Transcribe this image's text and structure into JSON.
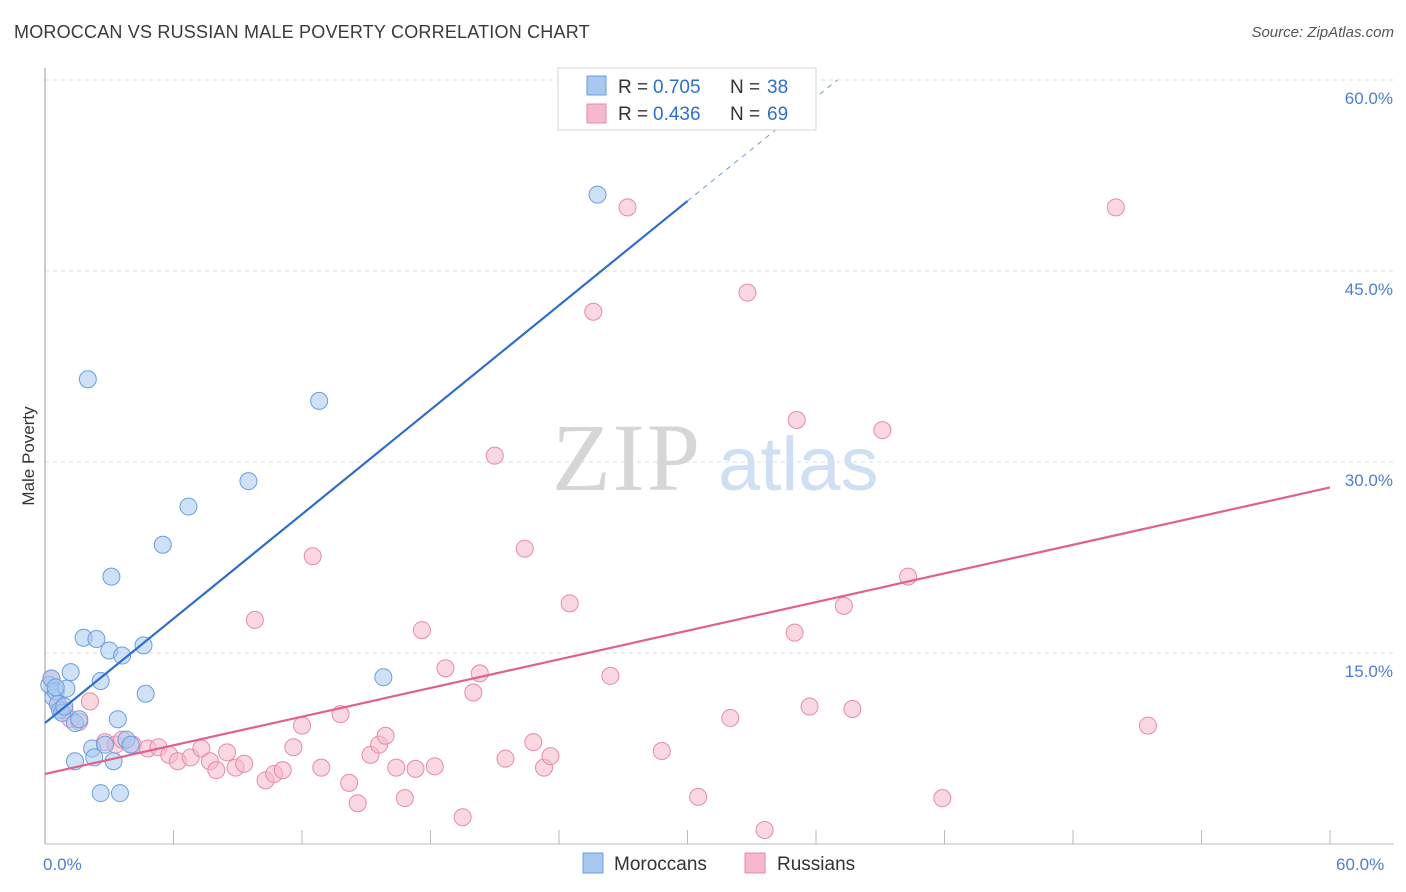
{
  "title": "MOROCCAN VS RUSSIAN MALE POVERTY CORRELATION CHART",
  "source": "Source: ZipAtlas.com",
  "colors": {
    "moroccans": "#a8c8f0",
    "moroccans_stroke": "#6a9ee0",
    "moroccans_line": "#2f6fcc",
    "russians": "#f6b8cb",
    "russians_stroke": "#e98aa8",
    "russians_line": "#e0608e",
    "tick": "#4a7fd4",
    "grid": "#dddddd"
  },
  "watermark": {
    "zip": "ZIP",
    "atlas": "atlas"
  },
  "legend_top": {
    "rows": [
      {
        "r_label": "R = ",
        "r_value": "0.705",
        "n_label": "N = ",
        "n_value": "38"
      },
      {
        "r_label": "R = ",
        "r_value": "0.436",
        "n_label": "N = ",
        "n_value": "69"
      }
    ]
  },
  "legend_bottom": [
    "Moroccans",
    "Russians"
  ],
  "chart_data": {
    "type": "scatter",
    "title": "MOROCCAN VS RUSSIAN MALE POVERTY CORRELATION CHART",
    "xlabel": "",
    "ylabel": "Male Poverty",
    "xlim": [
      0,
      60
    ],
    "ylim": [
      0,
      60
    ],
    "x_tick_labels": [
      "0.0%",
      "60.0%"
    ],
    "y_tick_labels": [
      "15.0%",
      "30.0%",
      "45.0%",
      "60.0%"
    ],
    "y_ticks": [
      15,
      30,
      45,
      60
    ],
    "grid": true,
    "legend": "top-center",
    "series": [
      {
        "name": "Moroccans",
        "r": 0.705,
        "n": 38,
        "trend": {
          "x": [
            0,
            30
          ],
          "y": [
            9.5,
            50.5
          ],
          "extended_to": [
            37,
            60
          ]
        },
        "points": [
          [
            0.2,
            12.5
          ],
          [
            0.3,
            13.0
          ],
          [
            0.4,
            11.5
          ],
          [
            0.5,
            12.0
          ],
          [
            0.6,
            11.0
          ],
          [
            0.7,
            10.5
          ],
          [
            0.8,
            10.3
          ],
          [
            0.9,
            10.8
          ],
          [
            1.0,
            12.2
          ],
          [
            1.2,
            13.5
          ],
          [
            1.4,
            9.5
          ],
          [
            1.6,
            9.8
          ],
          [
            1.8,
            16.2
          ],
          [
            2.0,
            36.5
          ],
          [
            2.2,
            7.5
          ],
          [
            2.4,
            16.1
          ],
          [
            2.6,
            12.8
          ],
          [
            2.8,
            7.8
          ],
          [
            3.0,
            15.2
          ],
          [
            3.1,
            21.0
          ],
          [
            3.2,
            6.5
          ],
          [
            3.4,
            9.8
          ],
          [
            3.6,
            14.8
          ],
          [
            3.8,
            8.2
          ],
          [
            4.0,
            7.8
          ],
          [
            4.6,
            15.6
          ],
          [
            4.7,
            11.8
          ],
          [
            5.5,
            23.5
          ],
          [
            6.7,
            26.5
          ],
          [
            9.5,
            28.5
          ],
          [
            12.8,
            34.8
          ],
          [
            15.8,
            13.1
          ],
          [
            25.8,
            51.0
          ],
          [
            1.4,
            6.5
          ],
          [
            2.3,
            6.8
          ],
          [
            3.5,
            4.0
          ],
          [
            2.6,
            4.0
          ],
          [
            0.5,
            12.3
          ]
        ]
      },
      {
        "name": "Russians",
        "r": 0.436,
        "n": 69,
        "trend": {
          "x": [
            0,
            60
          ],
          "y": [
            5.5,
            28.0
          ]
        },
        "points": [
          [
            0.3,
            13.0
          ],
          [
            0.6,
            11.0
          ],
          [
            0.9,
            10.5
          ],
          [
            1.2,
            9.8
          ],
          [
            1.6,
            9.6
          ],
          [
            2.1,
            11.2
          ],
          [
            2.8,
            8.0
          ],
          [
            3.3,
            7.8
          ],
          [
            3.6,
            8.2
          ],
          [
            4.1,
            7.8
          ],
          [
            4.8,
            7.5
          ],
          [
            5.3,
            7.6
          ],
          [
            5.8,
            7.0
          ],
          [
            6.2,
            6.5
          ],
          [
            6.8,
            6.8
          ],
          [
            7.3,
            7.5
          ],
          [
            7.7,
            6.5
          ],
          [
            8.0,
            5.8
          ],
          [
            8.5,
            7.2
          ],
          [
            8.9,
            6.0
          ],
          [
            9.3,
            6.3
          ],
          [
            9.8,
            17.6
          ],
          [
            10.3,
            5.0
          ],
          [
            10.7,
            5.5
          ],
          [
            11.1,
            5.8
          ],
          [
            11.6,
            7.6
          ],
          [
            12.0,
            9.3
          ],
          [
            12.5,
            22.6
          ],
          [
            12.9,
            6.0
          ],
          [
            13.8,
            10.2
          ],
          [
            14.2,
            4.8
          ],
          [
            14.6,
            3.2
          ],
          [
            15.2,
            7.0
          ],
          [
            15.6,
            7.8
          ],
          [
            15.9,
            8.5
          ],
          [
            16.4,
            6.0
          ],
          [
            16.8,
            3.6
          ],
          [
            17.3,
            5.9
          ],
          [
            17.6,
            16.8
          ],
          [
            18.2,
            6.1
          ],
          [
            18.7,
            13.8
          ],
          [
            19.5,
            2.1
          ],
          [
            20.0,
            11.9
          ],
          [
            20.3,
            13.4
          ],
          [
            21.0,
            30.5
          ],
          [
            21.5,
            6.7
          ],
          [
            22.4,
            23.2
          ],
          [
            22.8,
            8.0
          ],
          [
            23.3,
            6.0
          ],
          [
            23.6,
            6.9
          ],
          [
            24.5,
            18.9
          ],
          [
            25.6,
            41.8
          ],
          [
            26.4,
            13.2
          ],
          [
            27.2,
            50.0
          ],
          [
            28.8,
            7.3
          ],
          [
            30.5,
            3.7
          ],
          [
            32.0,
            9.9
          ],
          [
            32.8,
            43.3
          ],
          [
            33.6,
            1.1
          ],
          [
            35.0,
            16.6
          ],
          [
            35.1,
            33.3
          ],
          [
            35.7,
            10.8
          ],
          [
            37.3,
            18.7
          ],
          [
            37.7,
            10.6
          ],
          [
            39.1,
            32.5
          ],
          [
            40.3,
            21.0
          ],
          [
            41.9,
            3.6
          ],
          [
            50.0,
            50.0
          ],
          [
            51.5,
            9.3
          ]
        ]
      }
    ]
  }
}
